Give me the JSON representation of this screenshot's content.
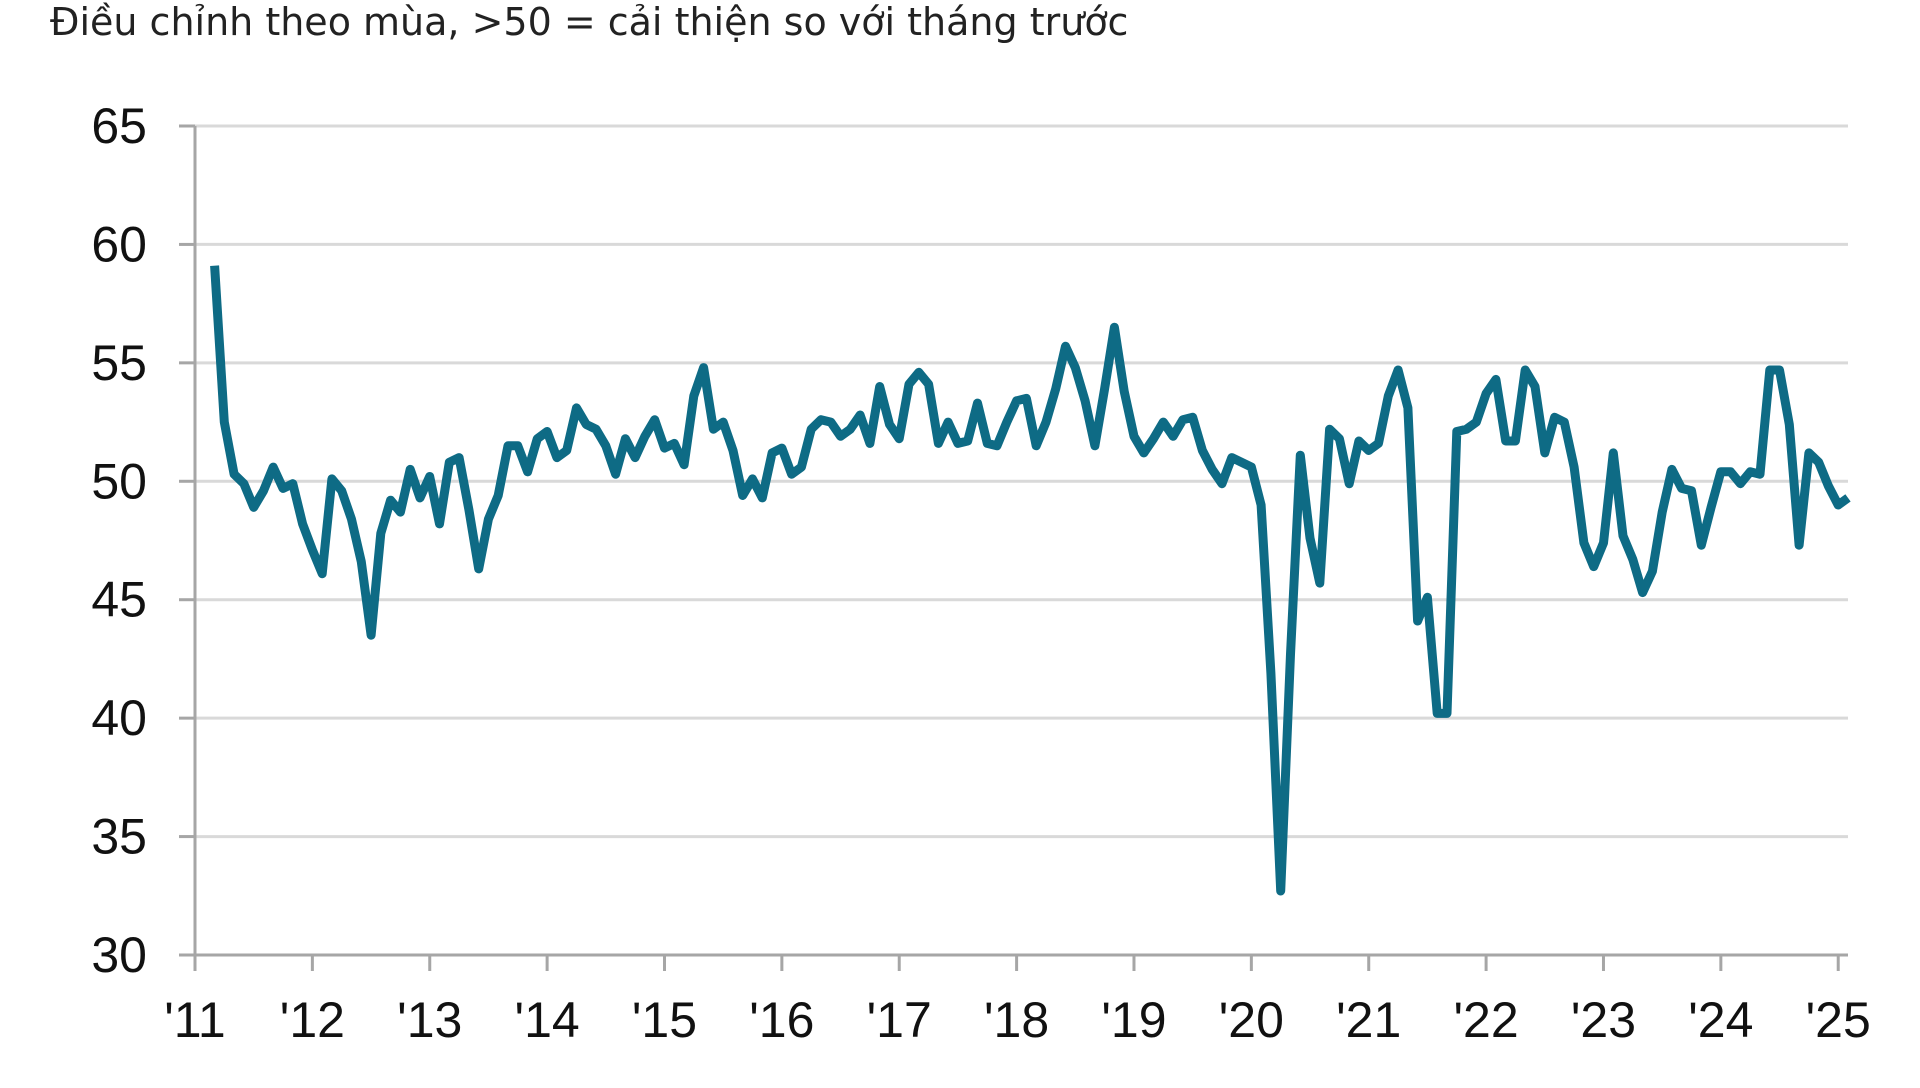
{
  "chart_data": {
    "type": "line",
    "title": "",
    "subtitle": "Điều chỉnh theo mùa, >50 = cải thiện so với tháng trước",
    "xlabel": "",
    "ylabel": "",
    "ylim": [
      30,
      65
    ],
    "y_ticks": [
      "30",
      "35",
      "40",
      "45",
      "50",
      "55",
      "60",
      "65"
    ],
    "y_tick_values": [
      30,
      35,
      40,
      45,
      50,
      55,
      60,
      65
    ],
    "x_ticks": [
      "'11",
      "'12",
      "'13",
      "'14",
      "'15",
      "'16",
      "'17",
      "'18",
      "'19",
      "'20",
      "'21",
      "'22",
      "'23",
      "'24",
      "'25"
    ],
    "x_tick_years": [
      2011,
      2012,
      2013,
      2014,
      2015,
      2016,
      2017,
      2018,
      2019,
      2020,
      2021,
      2022,
      2023,
      2024,
      2025
    ],
    "x_range": [
      "2011-01",
      "2025-02"
    ],
    "grid": true,
    "line_color": "#0e6b85",
    "grid_color": "#d9d9d9",
    "axis_color": "#a6a6a6",
    "series": [
      {
        "x_start": "2011-03",
        "values": [
          59.1,
          52.5,
          50.3,
          49.9,
          48.9,
          49.6,
          50.6,
          49.7,
          49.9,
          48.2,
          47.1,
          46.1,
          50.1,
          49.6,
          48.4,
          46.6,
          43.5,
          47.8,
          49.2,
          48.7,
          50.5,
          49.3,
          50.2,
          48.2,
          50.8,
          51.0,
          48.8,
          46.3,
          48.4,
          49.4,
          51.5,
          51.5,
          50.4,
          51.8,
          52.1,
          51.0,
          51.3,
          53.1,
          52.4,
          52.2,
          51.5,
          50.3,
          51.8,
          51.0,
          51.9,
          52.6,
          51.4,
          51.6,
          50.7,
          53.6,
          54.8,
          52.2,
          52.5,
          51.3,
          49.4,
          50.1,
          49.3,
          51.2,
          51.4,
          50.3,
          50.6,
          52.2,
          52.6,
          52.5,
          51.9,
          52.2,
          52.8,
          51.6,
          54.0,
          52.4,
          51.8,
          54.1,
          54.6,
          54.1,
          51.6,
          52.5,
          51.6,
          51.7,
          53.3,
          51.6,
          51.5,
          52.5,
          53.4,
          53.5,
          51.5,
          52.5,
          53.9,
          55.7,
          54.8,
          53.4,
          51.5,
          53.9,
          56.5,
          53.8,
          51.9,
          51.2,
          51.8,
          52.5,
          51.9,
          52.6,
          52.7,
          51.3,
          50.5,
          49.9,
          51.0,
          50.8,
          50.6,
          49.0,
          41.9,
          32.7,
          42.7,
          51.1,
          47.6,
          45.7,
          52.2,
          51.8,
          49.9,
          51.7,
          51.3,
          51.6,
          53.6,
          54.7,
          53.1,
          44.1,
          45.1,
          40.2,
          40.2,
          52.1,
          52.2,
          52.5,
          53.7,
          54.3,
          51.7,
          51.7,
          54.7,
          54.0,
          51.2,
          52.7,
          52.5,
          50.6,
          47.4,
          46.4,
          47.4,
          51.2,
          47.7,
          46.7,
          45.3,
          46.2,
          48.7,
          50.5,
          49.7,
          49.6,
          47.3,
          48.9,
          50.4,
          50.4,
          49.9,
          50.4,
          50.3,
          54.7,
          54.7,
          52.4,
          47.3,
          51.2,
          50.8,
          49.8,
          49.0,
          49.3
        ]
      }
    ]
  }
}
